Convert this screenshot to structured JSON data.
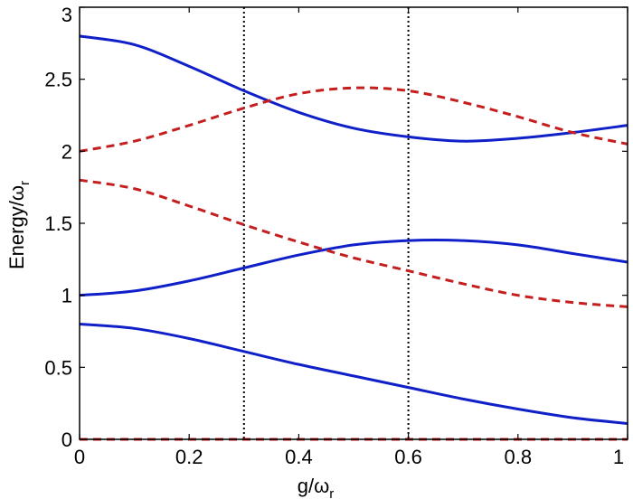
{
  "chart_data": {
    "type": "line",
    "xlabel_main": "g/ω",
    "xlabel_sub": "r",
    "ylabel_main": "Energy/ω",
    "ylabel_sub": "r",
    "xlim": [
      0,
      1
    ],
    "ylim": [
      0,
      3
    ],
    "x_ticks": [
      0,
      0.2,
      0.4,
      0.6,
      0.8,
      1
    ],
    "x_tick_labels": [
      "0",
      "0.2",
      "0.4",
      "0.6",
      "0.8",
      "1"
    ],
    "y_ticks": [
      0,
      0.5,
      1,
      1.5,
      2,
      2.5,
      3
    ],
    "y_tick_labels": [
      "0",
      "0.5",
      "1",
      "1.5",
      "2",
      "2.5",
      "3"
    ],
    "grid": false,
    "vertical_reference_lines": [
      {
        "x": 0.3,
        "style": "dotted",
        "color": "#000000"
      },
      {
        "x": 0.6,
        "style": "dotted",
        "color": "#000000"
      }
    ],
    "x": [
      0,
      0.1,
      0.2,
      0.3,
      0.4,
      0.5,
      0.6,
      0.7,
      0.8,
      0.9,
      1.0
    ],
    "series": [
      {
        "style": "solid",
        "color": "#1020c8",
        "values": [
          2.8,
          2.74,
          2.59,
          2.42,
          2.27,
          2.16,
          2.1,
          2.07,
          2.09,
          2.13,
          2.18
        ]
      },
      {
        "style": "solid",
        "color": "#1020c8",
        "values": [
          1.0,
          1.03,
          1.1,
          1.19,
          1.28,
          1.35,
          1.38,
          1.38,
          1.35,
          1.29,
          1.23
        ]
      },
      {
        "style": "solid",
        "color": "#1020c8",
        "values": [
          0.8,
          0.77,
          0.7,
          0.61,
          0.52,
          0.44,
          0.36,
          0.28,
          0.21,
          0.15,
          0.11
        ]
      },
      {
        "style": "dashed",
        "color": "#c41e1e",
        "values": [
          2.0,
          2.07,
          2.18,
          2.3,
          2.4,
          2.44,
          2.42,
          2.34,
          2.24,
          2.13,
          2.05
        ]
      },
      {
        "style": "dashed",
        "color": "#c41e1e",
        "values": [
          1.8,
          1.74,
          1.62,
          1.49,
          1.37,
          1.26,
          1.17,
          1.08,
          1.0,
          0.95,
          0.92
        ]
      },
      {
        "style": "dashed",
        "color": "#c41e1e",
        "values": [
          0,
          0,
          0,
          0,
          0,
          0,
          0,
          0,
          0,
          0,
          0
        ]
      }
    ]
  }
}
